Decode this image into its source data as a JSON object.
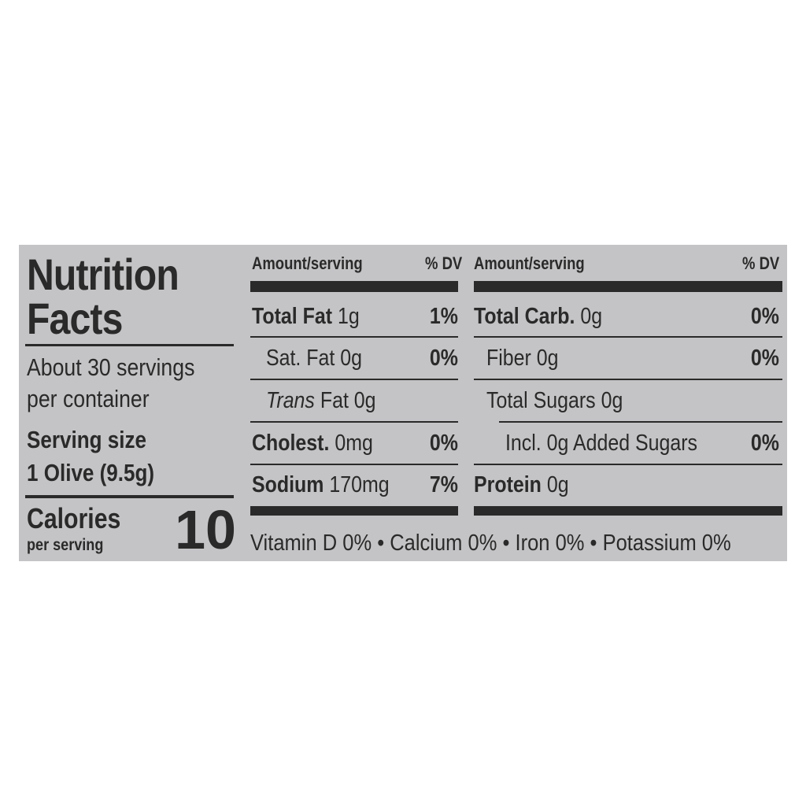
{
  "title_line1": "Nutrition",
  "title_line2": "Facts",
  "servings_line1": "About 30 servings",
  "servings_line2": "per container",
  "serving_size_label": "Serving size",
  "serving_size_value": "1 Olive (9.5g)",
  "calories_label": "Calories",
  "calories_sub": "per serving",
  "calories_value": "10",
  "header": {
    "amount": "Amount/serving",
    "dv": "% DV"
  },
  "left_rows": [
    {
      "name": "Total Fat",
      "amount": "1g",
      "dv": "1%"
    },
    {
      "name": "Sat. Fat",
      "amount": "0g",
      "dv": "0%"
    },
    {
      "name": "Trans",
      "name_rest": "Fat 0g",
      "dv": ""
    },
    {
      "name": "Cholest.",
      "amount": "0mg",
      "dv": "0%"
    },
    {
      "name": "Sodium",
      "amount": "170mg",
      "dv": "7%"
    }
  ],
  "right_rows": [
    {
      "name": "Total Carb.",
      "amount": "0g",
      "dv": "0%"
    },
    {
      "name": "Fiber",
      "amount": "0g",
      "dv": "0%"
    },
    {
      "name": "Total Sugars",
      "amount": "0g",
      "dv": ""
    },
    {
      "name": "Incl. 0g Added Sugars",
      "amount": "",
      "dv": "0%"
    },
    {
      "name": "Protein",
      "amount": "0g",
      "dv": ""
    }
  ],
  "footer": "Vitamin D 0% • Calcium 0% • Iron 0% • Potassium 0%"
}
